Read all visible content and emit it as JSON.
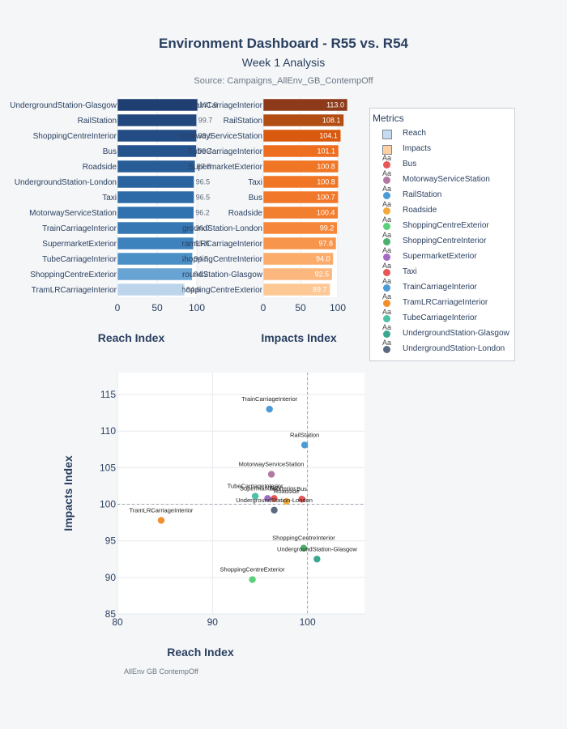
{
  "title": "Environment Dashboard - R55 vs. R54",
  "subtitle": "Week 1 Analysis",
  "source": "Source: Campaigns_AllEnv_GB_ContempOff",
  "footnote": "AllEnv GB ContempOff",
  "legend": {
    "title": "Metrics",
    "items": [
      {
        "label": "Reach",
        "kind": "bar",
        "color": "#c6dbef"
      },
      {
        "label": "Impacts",
        "kind": "bar",
        "color": "#fdd0a2"
      },
      {
        "label": "Bus",
        "kind": "dot",
        "color": "#e45756"
      },
      {
        "label": "MotorwayServiceStation",
        "kind": "dot",
        "color": "#b279a2"
      },
      {
        "label": "RailStation",
        "kind": "dot",
        "color": "#4c9ad6"
      },
      {
        "label": "Roadside",
        "kind": "dot",
        "color": "#f2a93b"
      },
      {
        "label": "ShoppingCentreExterior",
        "kind": "dot",
        "color": "#5ad07a"
      },
      {
        "label": "ShoppingCentreInterior",
        "kind": "dot",
        "color": "#4caf6e"
      },
      {
        "label": "SupermarketExterior",
        "kind": "dot",
        "color": "#a46bc4"
      },
      {
        "label": "Taxi",
        "kind": "dot",
        "color": "#e45756"
      },
      {
        "label": "TrainCarriageInterior",
        "kind": "dot",
        "color": "#4c9ad6"
      },
      {
        "label": "TramLRCarriageInterior",
        "kind": "dot",
        "color": "#f28e2b"
      },
      {
        "label": "TubeCarriageInterior",
        "kind": "dot",
        "color": "#4fc1a6"
      },
      {
        "label": "UndergroundStation-Glasgow",
        "kind": "dot",
        "color": "#3aa88f"
      },
      {
        "label": "UndergroundStation-London",
        "kind": "dot",
        "color": "#5a6b80"
      }
    ]
  },
  "chart_data": [
    {
      "type": "bar",
      "orientation": "horizontal",
      "xlabel": "Reach Index",
      "xlim": [
        0,
        100
      ],
      "xticks": [
        0,
        50,
        100
      ],
      "categories": [
        "UndergroundStation-Glasgow",
        "RailStation",
        "ShoppingCentreInterior",
        "Bus",
        "Roadside",
        "UndergroundStation-London",
        "Taxi",
        "MotorwayServiceStation",
        "TrainCarriageInterior",
        "SupermarketExterior",
        "TubeCarriageInterior",
        "ShoppingCentreExterior",
        "TramLRCarriageInterior"
      ],
      "values": [
        101.0,
        99.7,
        99.6,
        99.4,
        97.8,
        96.5,
        96.5,
        96.2,
        96.0,
        95.8,
        94.5,
        94.2,
        84.6
      ],
      "labels": [
        "101.0",
        "99.7",
        "99.6",
        "99.4",
        "97.8",
        "96.5",
        "96.5",
        "96.2",
        "96.0",
        "95.8",
        "94.5",
        "94.2",
        "84.6"
      ],
      "colors": [
        "#1f3f73",
        "#23487e",
        "#244c84",
        "#25538c",
        "#285c96",
        "#2a64a0",
        "#2d6ba8",
        "#3072af",
        "#3678b3",
        "#3e82bd",
        "#4b8fc7",
        "#67a3d3",
        "#bcd5eb"
      ]
    },
    {
      "type": "bar",
      "orientation": "horizontal",
      "xlabel": "Impacts Index",
      "xlim": [
        0,
        100
      ],
      "xticks": [
        0,
        50,
        100
      ],
      "categories": [
        "TrainCarriageInterior",
        "RailStation",
        "MotorwayServiceStation",
        "TubeCarriageInterior",
        "SupermarketExterior",
        "Taxi",
        "Bus",
        "Roadside",
        "UndergroundStation-London",
        "TramLRCarriageInterior",
        "ShoppingCentreInterior",
        "UndergroundStation-Glasgow",
        "ShoppingCentreExterior"
      ],
      "values": [
        113.0,
        108.1,
        104.1,
        101.1,
        100.8,
        100.8,
        100.7,
        100.4,
        99.2,
        97.8,
        94.0,
        92.5,
        89.7
      ],
      "labels": [
        "113.0",
        "108.1",
        "104.1",
        "101.1",
        "100.8",
        "100.8",
        "100.7",
        "100.4",
        "99.2",
        "97.8",
        "94.0",
        "92.5",
        "89.7"
      ],
      "colors": [
        "#8c3a1a",
        "#b24d14",
        "#d95a0e",
        "#ee6e1f",
        "#f07525",
        "#f07626",
        "#f1782a",
        "#f27e30",
        "#f6873a",
        "#f8954c",
        "#fbac6b",
        "#fcb77e",
        "#fdc894"
      ]
    },
    {
      "type": "scatter",
      "xlabel": "Reach Index",
      "ylabel": "Impacts Index",
      "xlim": [
        80,
        106
      ],
      "ylim": [
        85,
        118
      ],
      "xticks": [
        80,
        90,
        100
      ],
      "yticks": [
        85,
        90,
        95,
        100,
        105,
        110,
        115
      ],
      "reference_x": 100,
      "reference_y": 100,
      "points": [
        {
          "label": "TrainCarriageInterior",
          "x": 96.0,
          "y": 113.0,
          "color": "#4c9ad6"
        },
        {
          "label": "RailStation",
          "x": 99.7,
          "y": 108.1,
          "color": "#4c9ad6"
        },
        {
          "label": "MotorwayServiceStation",
          "x": 96.2,
          "y": 104.1,
          "color": "#b279a2"
        },
        {
          "label": "TubeCarriageInterior",
          "x": 94.5,
          "y": 101.1,
          "color": "#4fc1a6"
        },
        {
          "label": "SupermarketExterior",
          "x": 95.8,
          "y": 100.8,
          "color": "#a46bc4"
        },
        {
          "label": "Taxi",
          "x": 96.5,
          "y": 100.8,
          "color": "#e45756"
        },
        {
          "label": "Bus",
          "x": 99.4,
          "y": 100.7,
          "color": "#e45756"
        },
        {
          "label": "Roadside",
          "x": 97.8,
          "y": 100.4,
          "color": "#f2a93b"
        },
        {
          "label": "UndergroundStation-London",
          "x": 96.5,
          "y": 99.2,
          "color": "#5a6b80"
        },
        {
          "label": "TramLRCarriageInterior",
          "x": 84.6,
          "y": 97.8,
          "color": "#f28e2b"
        },
        {
          "label": "ShoppingCentreInterior",
          "x": 99.6,
          "y": 94.0,
          "color": "#4caf6e"
        },
        {
          "label": "UndergroundStation-Glasgow",
          "x": 101.0,
          "y": 92.5,
          "color": "#3aa88f"
        },
        {
          "label": "ShoppingCentreExterior",
          "x": 94.2,
          "y": 89.7,
          "color": "#5ad07a"
        }
      ]
    }
  ]
}
